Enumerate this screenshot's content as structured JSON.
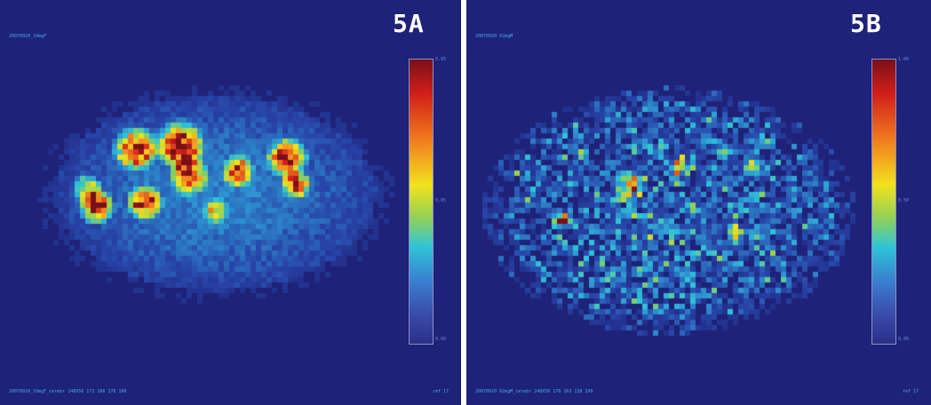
{
  "panels": [
    {
      "label": "5A",
      "file_label": "20070920_10mgF",
      "footer": "20070920_10mgF_cerebr 248X56 172 166 178 196",
      "footer_right": "ref 17",
      "colorbar": {
        "max": "0.95",
        "mid": "0.05",
        "min": "0.00"
      }
    },
    {
      "label": "5B",
      "file_label": "20070920 02mgM",
      "footer": "20070920 02mgM_cerebr 248X56 176 163 138 190",
      "footer_right": "ref 17",
      "colorbar": {
        "max": "1.00",
        "mid": "0.50",
        "min": "0.00"
      }
    }
  ],
  "colors": {
    "background": "#1e2278",
    "panel_label": "#ffffff",
    "annotation": "#4aa8e8"
  }
}
